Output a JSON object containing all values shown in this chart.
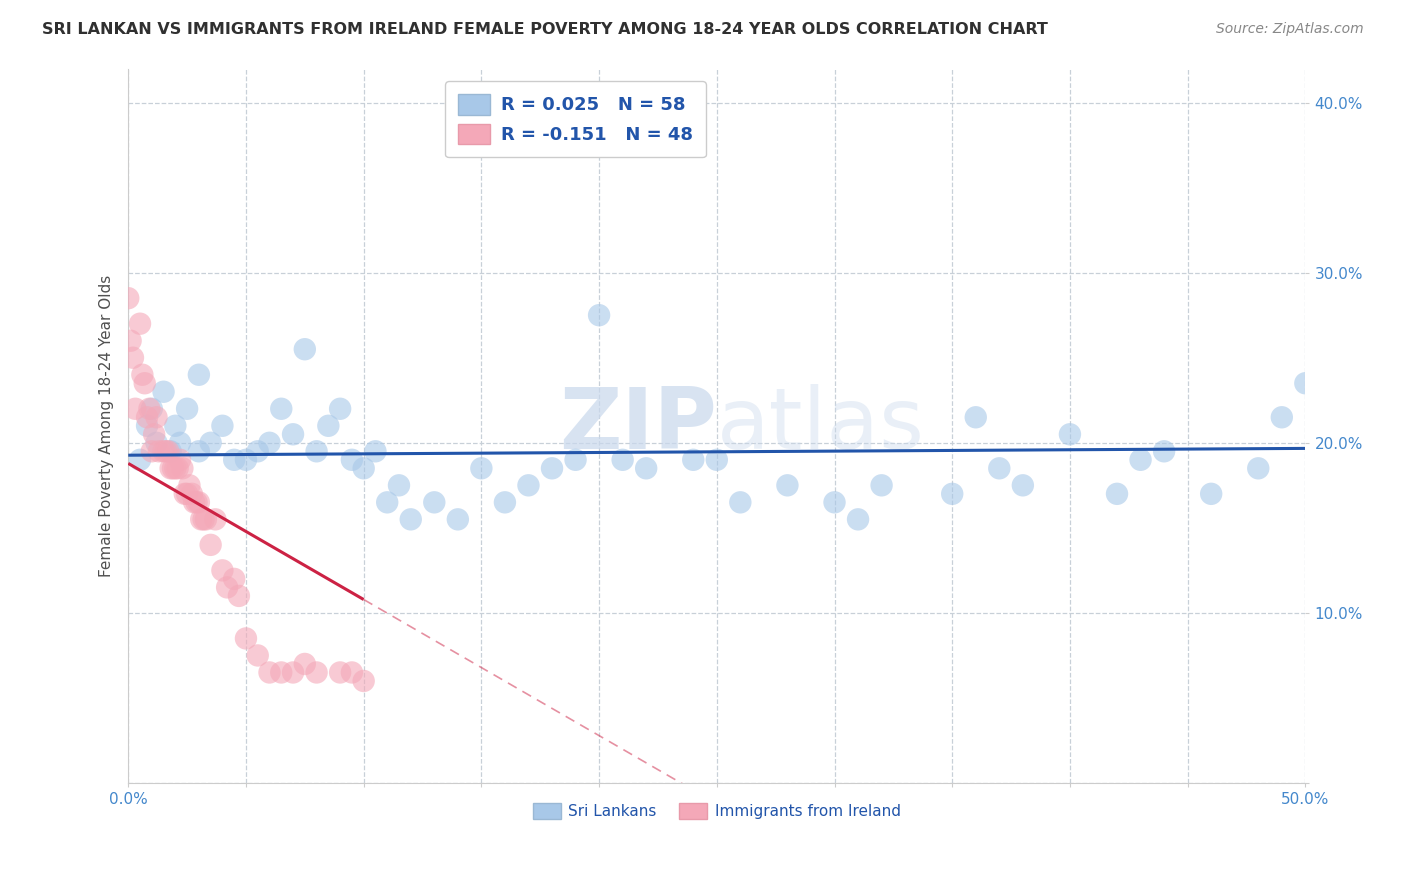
{
  "title": "SRI LANKAN VS IMMIGRANTS FROM IRELAND FEMALE POVERTY AMONG 18-24 YEAR OLDS CORRELATION CHART",
  "source": "Source: ZipAtlas.com",
  "ylabel": "Female Poverty Among 18-24 Year Olds",
  "xlim": [
    0.0,
    0.5
  ],
  "ylim": [
    0.0,
    0.42
  ],
  "xticks": [
    0.0,
    0.05,
    0.1,
    0.15,
    0.2,
    0.25,
    0.3,
    0.35,
    0.4,
    0.45,
    0.5
  ],
  "yticks": [
    0.0,
    0.1,
    0.2,
    0.3,
    0.4
  ],
  "blue_color": "#a8c8e8",
  "pink_color": "#f4a8b8",
  "blue_line_color": "#2255aa",
  "pink_line_color": "#cc2244",
  "watermark_zip": "ZIP",
  "watermark_atlas": "atlas",
  "background_color": "#ffffff",
  "grid_color": "#c8d0d8",
  "title_color": "#303030",
  "tick_label_color": "#4488cc",
  "axis_label_color": "#505050",
  "source_color": "#888888",
  "sri_r": 0.025,
  "sri_n": 58,
  "ire_r": -0.151,
  "ire_n": 48,
  "sri_x": [
    0.005,
    0.008,
    0.01,
    0.012,
    0.015,
    0.018,
    0.02,
    0.022,
    0.025,
    0.03,
    0.03,
    0.035,
    0.04,
    0.045,
    0.05,
    0.055,
    0.06,
    0.065,
    0.07,
    0.075,
    0.08,
    0.085,
    0.09,
    0.095,
    0.1,
    0.105,
    0.11,
    0.115,
    0.12,
    0.13,
    0.14,
    0.15,
    0.16,
    0.17,
    0.18,
    0.19,
    0.2,
    0.21,
    0.22,
    0.24,
    0.25,
    0.26,
    0.28,
    0.3,
    0.31,
    0.32,
    0.35,
    0.36,
    0.37,
    0.38,
    0.4,
    0.42,
    0.43,
    0.44,
    0.46,
    0.48,
    0.49,
    0.5
  ],
  "sri_y": [
    0.19,
    0.21,
    0.22,
    0.2,
    0.23,
    0.195,
    0.21,
    0.2,
    0.22,
    0.24,
    0.195,
    0.2,
    0.21,
    0.19,
    0.19,
    0.195,
    0.2,
    0.22,
    0.205,
    0.255,
    0.195,
    0.21,
    0.22,
    0.19,
    0.185,
    0.195,
    0.165,
    0.175,
    0.155,
    0.165,
    0.155,
    0.185,
    0.165,
    0.175,
    0.185,
    0.19,
    0.275,
    0.19,
    0.185,
    0.19,
    0.19,
    0.165,
    0.175,
    0.165,
    0.155,
    0.175,
    0.17,
    0.215,
    0.185,
    0.175,
    0.205,
    0.17,
    0.19,
    0.195,
    0.17,
    0.185,
    0.215,
    0.235
  ],
  "ire_x": [
    0.0,
    0.001,
    0.002,
    0.003,
    0.005,
    0.006,
    0.007,
    0.008,
    0.009,
    0.01,
    0.011,
    0.012,
    0.013,
    0.015,
    0.016,
    0.017,
    0.018,
    0.019,
    0.02,
    0.021,
    0.022,
    0.023,
    0.024,
    0.025,
    0.026,
    0.027,
    0.028,
    0.029,
    0.03,
    0.031,
    0.032,
    0.033,
    0.035,
    0.037,
    0.04,
    0.042,
    0.045,
    0.047,
    0.05,
    0.055,
    0.06,
    0.065,
    0.07,
    0.075,
    0.08,
    0.09,
    0.095,
    0.1
  ],
  "ire_y": [
    0.285,
    0.26,
    0.25,
    0.22,
    0.27,
    0.24,
    0.235,
    0.215,
    0.22,
    0.195,
    0.205,
    0.215,
    0.195,
    0.195,
    0.195,
    0.195,
    0.185,
    0.185,
    0.185,
    0.185,
    0.19,
    0.185,
    0.17,
    0.17,
    0.175,
    0.17,
    0.165,
    0.165,
    0.165,
    0.155,
    0.155,
    0.155,
    0.14,
    0.155,
    0.125,
    0.115,
    0.12,
    0.11,
    0.085,
    0.075,
    0.065,
    0.065,
    0.065,
    0.07,
    0.065,
    0.065,
    0.065,
    0.06
  ]
}
